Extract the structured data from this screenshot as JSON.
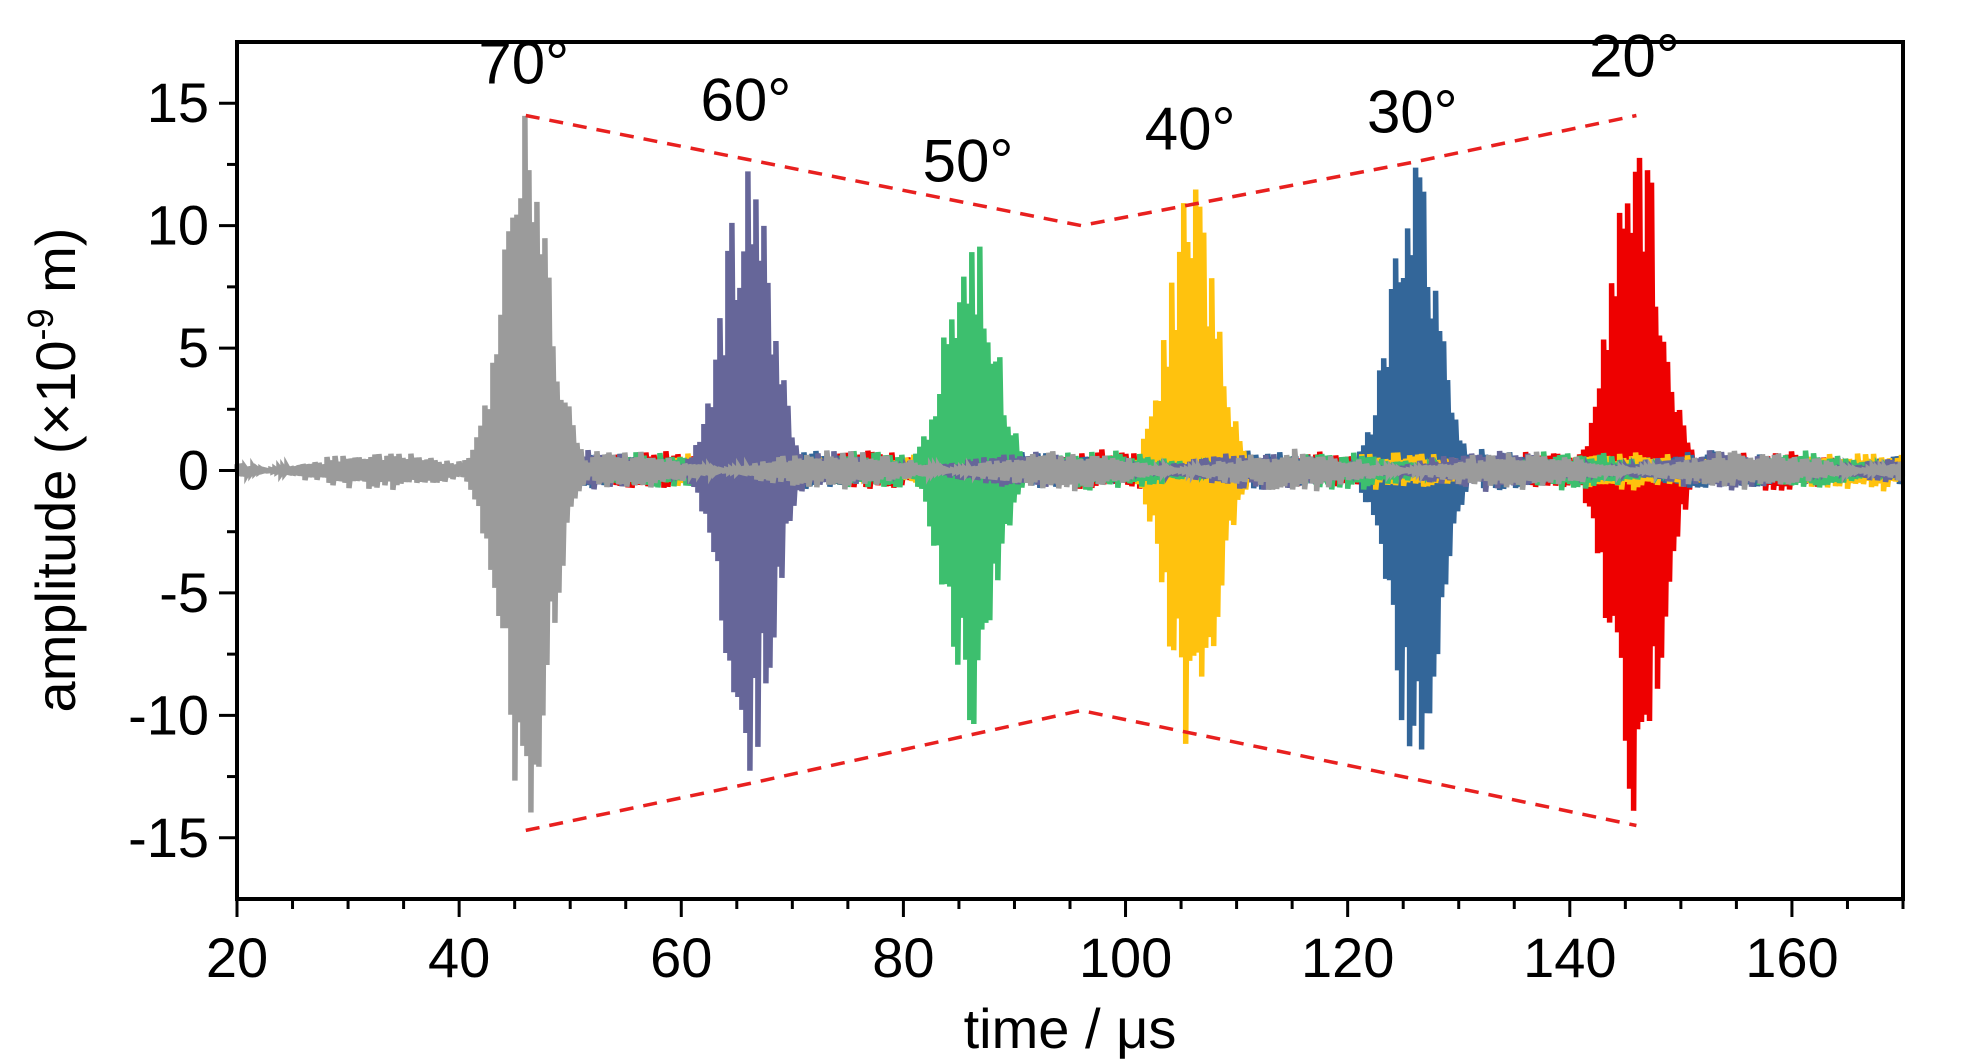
{
  "chart_data": {
    "type": "line",
    "xlabel_main": "time / ",
    "xlabel_unit": "μs",
    "ylabel_main": "amplitude (×10",
    "ylabel_exp": "-9",
    "ylabel_tail": " m)",
    "xlim": [
      20,
      170
    ],
    "ylim": [
      -17.5,
      17.5
    ],
    "x_ticks": [
      20,
      40,
      60,
      80,
      100,
      120,
      140,
      160
    ],
    "y_ticks": [
      -15,
      -10,
      -5,
      0,
      5,
      10,
      15
    ],
    "grid": false,
    "series": [
      {
        "label": "70°",
        "center": 46,
        "peak": 14.5,
        "color": "#9b9b9b"
      },
      {
        "label": "60°",
        "center": 66,
        "peak": 13.0,
        "color": "#666699"
      },
      {
        "label": "50°",
        "center": 86,
        "peak": 10.5,
        "color": "#3dbf6e"
      },
      {
        "label": "40°",
        "center": 106,
        "peak": 11.8,
        "color": "#ffc20e"
      },
      {
        "label": "30°",
        "center": 126,
        "peak": 12.5,
        "color": "#336699"
      },
      {
        "label": "20°",
        "center": 146,
        "peak": 14.8,
        "color": "#ee0000"
      }
    ],
    "envelope": {
      "color": "#e8201f",
      "upper": [
        [
          46,
          14.5
        ],
        [
          66,
          12.7
        ],
        [
          96,
          10.0
        ],
        [
          126,
          12.6
        ],
        [
          146,
          14.5
        ]
      ],
      "lower": [
        [
          46,
          -14.7
        ],
        [
          66,
          -12.8
        ],
        [
          96,
          -9.8
        ],
        [
          126,
          -12.6
        ],
        [
          146,
          -14.5
        ]
      ]
    }
  }
}
